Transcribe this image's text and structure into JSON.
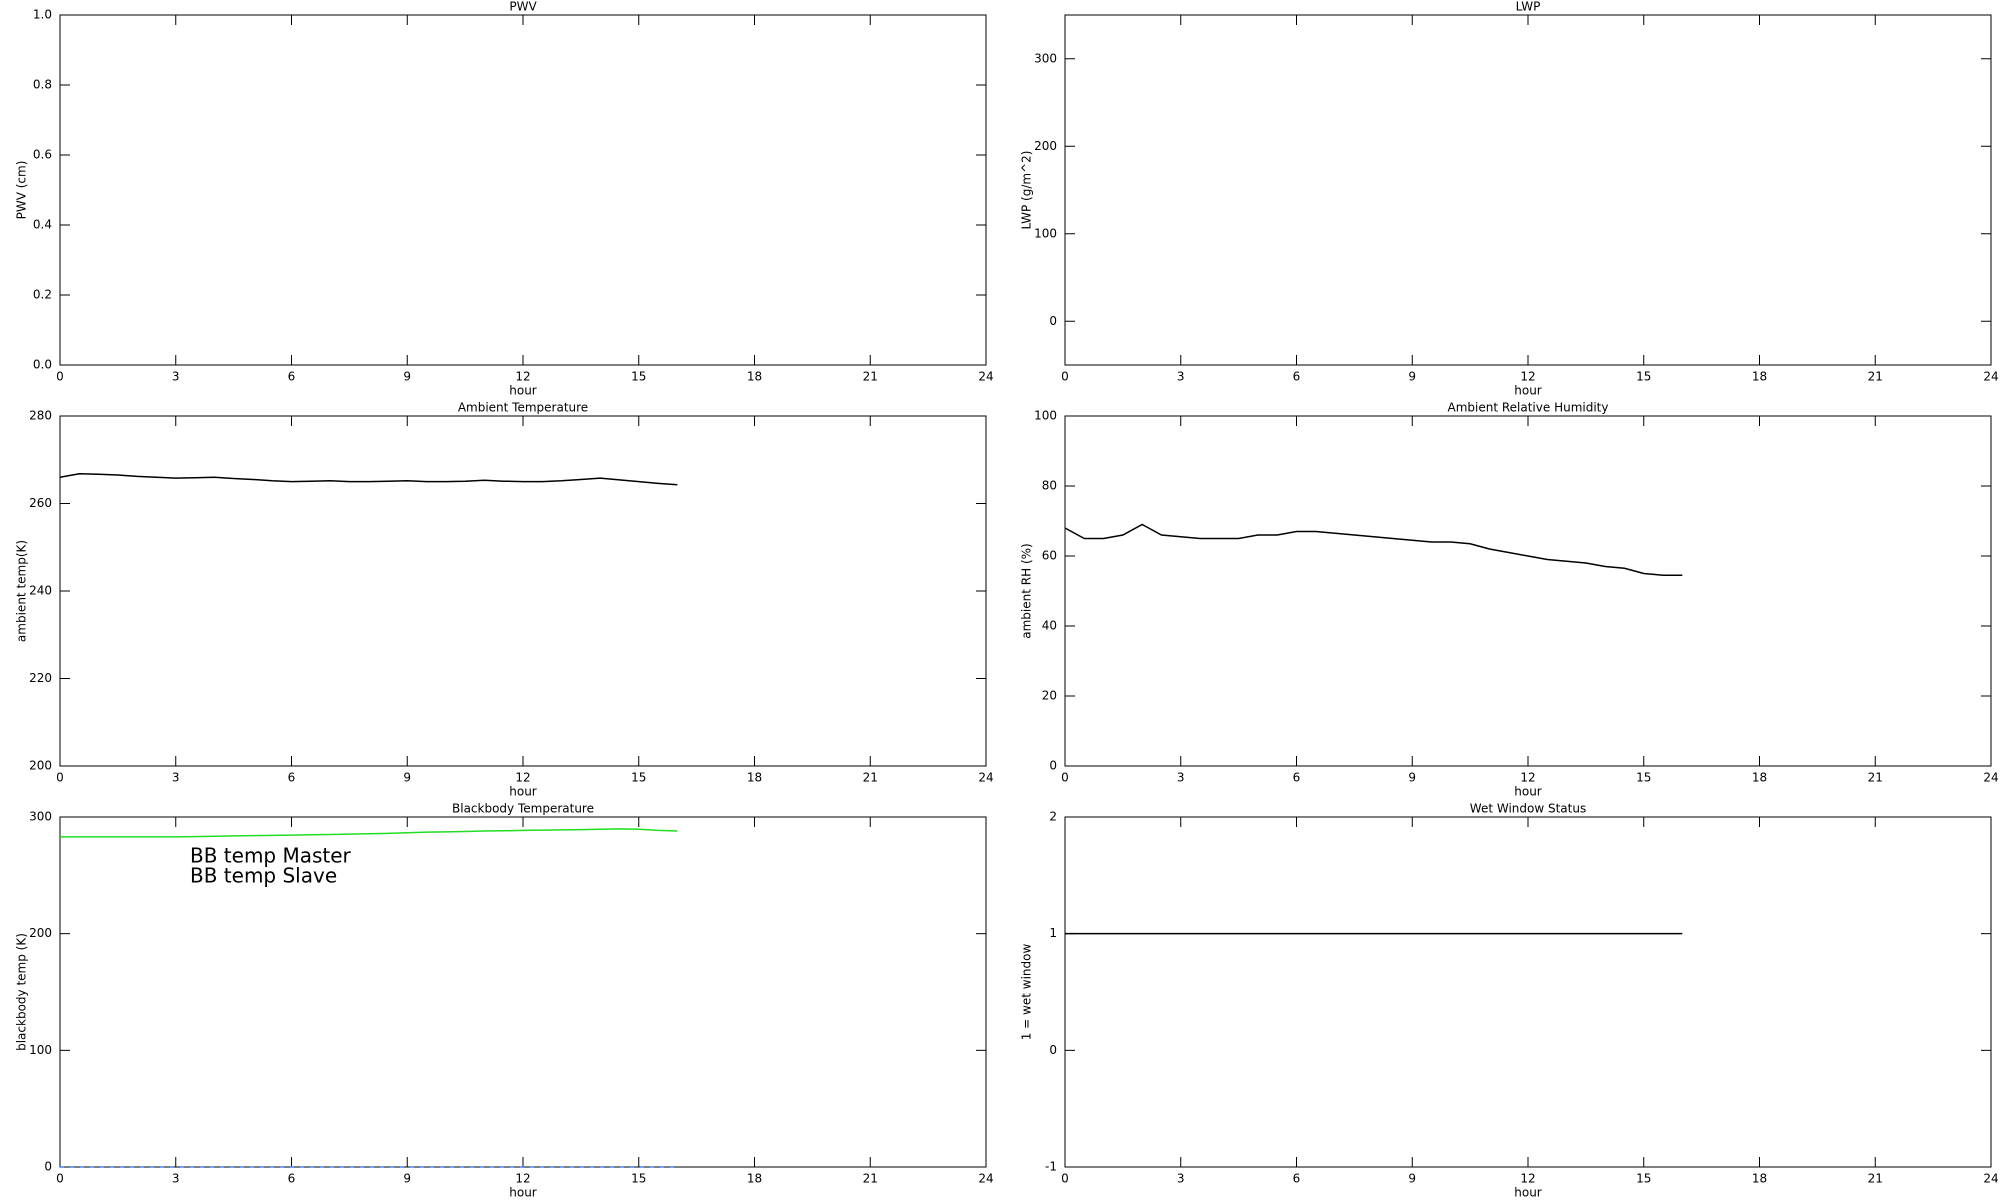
{
  "chart_data": [
    {
      "type": "line",
      "title": "PWV",
      "x_label": "hour",
      "y_label": "PWV (cm)",
      "xlim": [
        0,
        24
      ],
      "xticks": [
        0,
        3,
        6,
        9,
        12,
        15,
        18,
        21,
        24
      ],
      "ylim": [
        0,
        1
      ],
      "yticks": [
        {
          "value": 0,
          "label": "0.0"
        },
        0.2,
        0.4,
        0.6,
        0.8,
        {
          "value": 1,
          "label": "1.0"
        }
      ],
      "x": [],
      "series": []
    },
    {
      "type": "line",
      "title": "LWP",
      "x_label": "hour",
      "y_label": "LWP (g/m^2)",
      "xlim": [
        0,
        24
      ],
      "xticks": [
        0,
        3,
        6,
        9,
        12,
        15,
        18,
        21,
        24
      ],
      "ylim": [
        -50,
        350
      ],
      "yticks": [
        0,
        100,
        200,
        300
      ],
      "x": [],
      "series": []
    },
    {
      "type": "line",
      "title": "Ambient Temperature",
      "x_label": "hour",
      "y_label": "ambient temp(K)",
      "xlim": [
        0,
        24
      ],
      "xticks": [
        0,
        3,
        6,
        9,
        12,
        15,
        18,
        21,
        24
      ],
      "ylim": [
        200,
        280
      ],
      "yticks": [
        200,
        220,
        240,
        260,
        280
      ],
      "x": [
        0,
        0.5,
        1,
        1.5,
        2,
        2.5,
        3,
        3.5,
        4,
        4.5,
        5,
        5.5,
        6,
        6.5,
        7,
        7.5,
        8,
        8.5,
        9,
        9.5,
        10,
        10.5,
        11,
        11.5,
        12,
        12.5,
        13,
        13.5,
        14,
        14.5,
        15,
        15.5,
        16
      ],
      "series": [
        {
          "color": "#000000",
          "values": [
            266,
            266.8,
            266.7,
            266.5,
            266.2,
            266,
            265.8,
            265.9,
            266,
            265.7,
            265.5,
            265.2,
            265,
            265.1,
            265.2,
            265,
            265,
            265.1,
            265.2,
            265,
            265,
            265.1,
            265.3,
            265.1,
            265,
            265,
            265.2,
            265.5,
            265.8,
            265.4,
            265,
            264.6,
            264.3
          ]
        }
      ]
    },
    {
      "type": "line",
      "title": "Ambient Relative Humidity",
      "x_label": "hour",
      "y_label": "ambient RH (%)",
      "xlim": [
        0,
        24
      ],
      "xticks": [
        0,
        3,
        6,
        9,
        12,
        15,
        18,
        21,
        24
      ],
      "ylim": [
        0,
        100
      ],
      "yticks": [
        0,
        20,
        40,
        60,
        80,
        100
      ],
      "x": [
        0,
        0.5,
        1,
        1.5,
        2,
        2.5,
        3,
        3.5,
        4,
        4.5,
        5,
        5.5,
        6,
        6.5,
        7,
        7.5,
        8,
        8.5,
        9,
        9.5,
        10,
        10.5,
        11,
        11.5,
        12,
        12.5,
        13,
        13.5,
        14,
        14.5,
        15,
        15.5,
        16
      ],
      "series": [
        {
          "color": "#000000",
          "values": [
            68,
            65,
            65,
            66,
            69,
            66,
            65.5,
            65,
            65,
            65,
            66,
            66,
            67,
            67,
            66.5,
            66,
            65.5,
            65,
            64.5,
            64,
            64,
            63.5,
            62,
            61,
            60,
            59,
            58.5,
            58,
            57,
            56.5,
            55,
            54.5,
            54.5
          ]
        }
      ]
    },
    {
      "type": "line",
      "title": "Blackbody Temperature",
      "x_label": "hour",
      "y_label": "blackbody temp (K)",
      "xlim": [
        0,
        24
      ],
      "xticks": [
        0,
        3,
        6,
        9,
        12,
        15,
        18,
        21,
        24
      ],
      "ylim": [
        0,
        300
      ],
      "yticks": [
        0,
        100,
        200,
        300
      ],
      "legend": "upper left",
      "x": [
        0,
        0.5,
        1,
        1.5,
        2,
        2.5,
        3,
        3.5,
        4,
        4.5,
        5,
        5.5,
        6,
        6.5,
        7,
        7.5,
        8,
        8.5,
        9,
        9.5,
        10,
        10.5,
        11,
        11.5,
        12,
        12.5,
        13,
        13.5,
        14,
        14.5,
        15,
        15.5,
        16
      ],
      "series": [
        {
          "name": "BB temp Master",
          "color": "#3b82ff",
          "dashed": true,
          "values": [
            0,
            0,
            0,
            0,
            0,
            0,
            0,
            0,
            0,
            0,
            0,
            0,
            0,
            0,
            0,
            0,
            0,
            0,
            0,
            0,
            0,
            0,
            0,
            0,
            0,
            0,
            0,
            0,
            0,
            0,
            0,
            0,
            0
          ]
        },
        {
          "name": "BB temp Slave",
          "color": "#22dd22",
          "values": [
            283,
            283,
            283,
            283,
            283,
            283,
            283,
            283.2,
            283.5,
            283.8,
            284,
            284.2,
            284.5,
            284.8,
            285,
            285.3,
            285.6,
            286,
            286.5,
            287,
            287.3,
            287.6,
            288,
            288.2,
            288.5,
            288.8,
            289,
            289.2,
            289.5,
            289.8,
            289.5,
            288.5,
            288
          ]
        }
      ]
    },
    {
      "type": "line",
      "title": "Wet Window Status",
      "x_label": "hour",
      "y_label": "1 = wet window",
      "xlim": [
        0,
        24
      ],
      "xticks": [
        0,
        3,
        6,
        9,
        12,
        15,
        18,
        21,
        24
      ],
      "ylim": [
        -1,
        2
      ],
      "yticks": [
        -1,
        0,
        1,
        2
      ],
      "x": [
        0,
        16
      ],
      "series": [
        {
          "color": "#000000",
          "values": [
            1,
            1
          ]
        }
      ]
    }
  ]
}
